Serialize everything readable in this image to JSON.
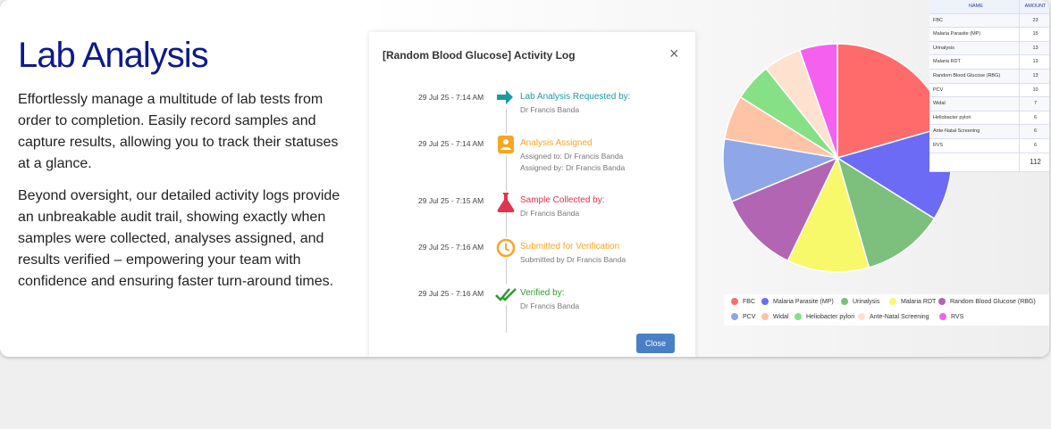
{
  "header": {
    "title": "Lab Analysis",
    "paragraphs": [
      "Effortlessly manage a multitude of lab tests from order to completion. Easily record samples and capture results, allowing you to track their statuses at a glance.",
      "Beyond oversight, our detailed activity logs provide an unbreakable audit trail, showing exactly when samples were collected, analyses assigned, and results verified – empowering your team with confidence and ensuring faster turn-around times."
    ]
  },
  "modal": {
    "title": "[Random Blood Glucose] Activity Log",
    "close_icon": "×",
    "button": "Close",
    "entries": [
      {
        "date": "29 Jul 25 - 7:14 AM",
        "title": "Lab Analysis Requested by:",
        "lines": [
          "Dr Francis Banda"
        ],
        "color": "#1b9aa3"
      },
      {
        "date": "29 Jul 25 - 7:14 AM",
        "title": "Analysis Assigned",
        "lines": [
          "Assigned to: Dr Francis Banda",
          "Assigned by: Dr Francis Banda"
        ],
        "color": "#f5a623"
      },
      {
        "date": "29 Jul 25 - 7:15 AM",
        "title": "Sample Collected by:",
        "lines": [
          "Dr Francis Banda"
        ],
        "color": "#e0344f"
      },
      {
        "date": "29 Jul 25 - 7:16 AM",
        "title": "Submitted for Verification",
        "lines": [
          "Submitted by Dr Francis Banda"
        ],
        "color": "#f5a623"
      },
      {
        "date": "29 Jul 25 - 7:16 AM",
        "title": "Verified by:",
        "lines": [
          "Dr Francis Banda"
        ],
        "color": "#2e9a2e"
      }
    ]
  },
  "chart_data": {
    "type": "pie",
    "categories": [
      "FBC",
      "Malaria Parasite (MP)",
      "Urinalysis",
      "Malaria RDT",
      "Random Blood Glucose (RBG)",
      "PCV",
      "Widal",
      "Heliobacter pylori",
      "Ante-Natal Screening",
      "RVS"
    ],
    "values": [
      23,
      15,
      13,
      13,
      13,
      10,
      7,
      6,
      6,
      6
    ],
    "colors": [
      "#ff6b6b",
      "#6b6bf5",
      "#7dbf7d",
      "#f8f86b",
      "#b265b2",
      "#8fa6e8",
      "#ffc3a6",
      "#86e086",
      "#ffe1cf",
      "#f560ef"
    ]
  },
  "table": {
    "headers": [
      "NAME",
      "AMOUNT"
    ],
    "total": 112
  }
}
